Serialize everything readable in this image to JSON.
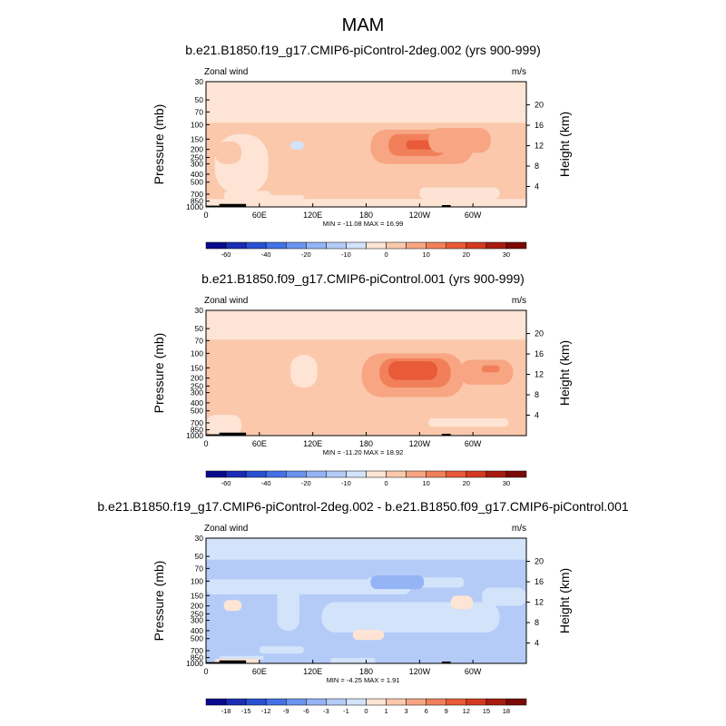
{
  "page_title": "MAM",
  "chart_data": [
    {
      "type": "heatmap",
      "title": "b.e21.B1850.f19_g17.CMIP6-piControl-2deg.002 (yrs 900-999)",
      "variable_label": "Zonal wind",
      "units_label": "m/s",
      "ylabel": "Pressure (mb)",
      "right_ylabel": "Height (km)",
      "pressure_ticks": [
        "30",
        "50",
        "70",
        "100",
        "150",
        "200",
        "250",
        "300",
        "400",
        "500",
        "700",
        "850",
        "1000"
      ],
      "pressure_values": [
        30,
        50,
        70,
        100,
        150,
        200,
        250,
        300,
        400,
        500,
        700,
        850,
        1000
      ],
      "height_ticks": [
        "20",
        "16",
        "12",
        "8",
        "4"
      ],
      "height_values": [
        20,
        16,
        12,
        8,
        4
      ],
      "x_ticks": [
        "0",
        "60E",
        "120E",
        "180",
        "120W",
        "60W"
      ],
      "x_values": [
        0,
        60,
        120,
        180,
        240,
        300
      ],
      "xlim": [
        0,
        360
      ],
      "stats_label": "MIN = -11.08  MAX =  16.99",
      "min": -11.08,
      "max": 16.99,
      "colorbar_levels": [
        -70,
        -60,
        -50,
        -40,
        -30,
        -20,
        -15,
        -10,
        -5,
        0,
        5,
        10,
        15,
        20,
        25,
        30,
        35
      ],
      "colorbar_labels": [
        "-60",
        "-40",
        "-20",
        "-10",
        "0",
        "10",
        "20",
        "30"
      ],
      "colorbar_label_values": [
        -60,
        -40,
        -20,
        -10,
        0,
        10,
        20,
        30
      ],
      "colorbar_colors": [
        "#0a0a8c",
        "#1a2db4",
        "#2a50d2",
        "#4472e6",
        "#6a94f0",
        "#94b4f6",
        "#b4cbf8",
        "#d2e3fa",
        "#fde4d4",
        "#fbc8ac",
        "#f7a582",
        "#f1805a",
        "#e85a38",
        "#d23a20",
        "#a81c10",
        "#7a0a06"
      ],
      "regions": [
        {
          "lon": [
            0,
            360
          ],
          "p": [
            30,
            1000
          ],
          "value": -2
        },
        {
          "lon": [
            0,
            360
          ],
          "p": [
            95,
            800
          ],
          "value": 2
        },
        {
          "lon": [
            10,
            70
          ],
          "p": [
            130,
            700
          ],
          "value": -2
        },
        {
          "lon": [
            10,
            40
          ],
          "p": [
            160,
            300
          ],
          "value": 4
        },
        {
          "lon": [
            70,
            180
          ],
          "p": [
            120,
            700
          ],
          "value": 1
        },
        {
          "lon": [
            95,
            110
          ],
          "p": [
            160,
            200
          ],
          "value": -6
        },
        {
          "lon": [
            170,
            330
          ],
          "p": [
            110,
            450
          ],
          "value": 4
        },
        {
          "lon": [
            185,
            300
          ],
          "p": [
            115,
            300
          ],
          "value": 8
        },
        {
          "lon": [
            205,
            270
          ],
          "p": [
            130,
            240
          ],
          "value": 12
        },
        {
          "lon": [
            225,
            260
          ],
          "p": [
            155,
            200
          ],
          "value": 16
        },
        {
          "lon": [
            250,
            320
          ],
          "p": [
            110,
            220
          ],
          "value": 7
        },
        {
          "lon": [
            20,
            110
          ],
          "p": [
            640,
            850
          ],
          "value": -3
        },
        {
          "lon": [
            70,
            150
          ],
          "p": [
            500,
            720
          ],
          "value": 3
        },
        {
          "lon": [
            240,
            330
          ],
          "p": [
            580,
            800
          ],
          "value": -3
        },
        {
          "lon": [
            10,
            350
          ],
          "p": [
            850,
            1000
          ],
          "value": -2
        }
      ],
      "terrain": [
        {
          "lon": [
            15,
            45
          ],
          "p": [
            920,
            1000
          ]
        },
        {
          "lon": [
            0,
            15
          ],
          "p": [
            965,
            1000
          ]
        },
        {
          "lon": [
            265,
            275
          ],
          "p": [
            950,
            1000
          ]
        }
      ]
    },
    {
      "type": "heatmap",
      "title": "b.e21.B1850.f09_g17.CMIP6-piControl.001 (yrs 900-999)",
      "variable_label": "Zonal wind",
      "units_label": "m/s",
      "ylabel": "Pressure (mb)",
      "right_ylabel": "Height (km)",
      "pressure_ticks": [
        "30",
        "50",
        "70",
        "100",
        "150",
        "200",
        "250",
        "300",
        "400",
        "500",
        "700",
        "850",
        "1000"
      ],
      "pressure_values": [
        30,
        50,
        70,
        100,
        150,
        200,
        250,
        300,
        400,
        500,
        700,
        850,
        1000
      ],
      "height_ticks": [
        "20",
        "16",
        "12",
        "8",
        "4"
      ],
      "height_values": [
        20,
        16,
        12,
        8,
        4
      ],
      "x_ticks": [
        "0",
        "60E",
        "120E",
        "180",
        "120W",
        "60W"
      ],
      "x_values": [
        0,
        60,
        120,
        180,
        240,
        300
      ],
      "xlim": [
        0,
        360
      ],
      "stats_label": "MIN = -11.20  MAX =  18.92",
      "min": -11.2,
      "max": 18.92,
      "colorbar_levels": [
        -70,
        -60,
        -50,
        -40,
        -30,
        -20,
        -15,
        -10,
        -5,
        0,
        5,
        10,
        15,
        20,
        25,
        30,
        35
      ],
      "colorbar_labels": [
        "-60",
        "-40",
        "-20",
        "-10",
        "0",
        "10",
        "20",
        "30"
      ],
      "colorbar_label_values": [
        -60,
        -40,
        -20,
        -10,
        0,
        10,
        20,
        30
      ],
      "colorbar_colors": [
        "#0a0a8c",
        "#1a2db4",
        "#2a50d2",
        "#4472e6",
        "#6a94f0",
        "#94b4f6",
        "#b4cbf8",
        "#d2e3fa",
        "#fde4d4",
        "#fbc8ac",
        "#f7a582",
        "#f1805a",
        "#e85a38",
        "#d23a20",
        "#a81c10",
        "#7a0a06"
      ],
      "regions": [
        {
          "lon": [
            0,
            360
          ],
          "p": [
            30,
            1000
          ],
          "value": 2
        },
        {
          "lon": [
            0,
            360
          ],
          "p": [
            30,
            68
          ],
          "value": -2
        },
        {
          "lon": [
            95,
            125
          ],
          "p": [
            105,
            260
          ],
          "value": -2
        },
        {
          "lon": [
            30,
            70
          ],
          "p": [
            130,
            360
          ],
          "value": 4
        },
        {
          "lon": [
            160,
            320
          ],
          "p": [
            95,
            520
          ],
          "value": 4
        },
        {
          "lon": [
            175,
            290
          ],
          "p": [
            100,
            340
          ],
          "value": 8
        },
        {
          "lon": [
            195,
            275
          ],
          "p": [
            115,
            260
          ],
          "value": 12
        },
        {
          "lon": [
            205,
            260
          ],
          "p": [
            125,
            210
          ],
          "value": 16
        },
        {
          "lon": [
            285,
            345
          ],
          "p": [
            120,
            240
          ],
          "value": 7
        },
        {
          "lon": [
            310,
            330
          ],
          "p": [
            140,
            170
          ],
          "value": 12
        },
        {
          "lon": [
            0,
            40
          ],
          "p": [
            560,
            1000
          ],
          "value": -2
        },
        {
          "lon": [
            60,
            150
          ],
          "p": [
            680,
            900
          ],
          "value": 4
        },
        {
          "lon": [
            250,
            340
          ],
          "p": [
            620,
            780
          ],
          "value": -2
        }
      ],
      "terrain": [
        {
          "lon": [
            15,
            45
          ],
          "p": [
            920,
            1000
          ]
        },
        {
          "lon": [
            0,
            15
          ],
          "p": [
            965,
            1000
          ]
        },
        {
          "lon": [
            265,
            275
          ],
          "p": [
            950,
            1000
          ]
        }
      ]
    },
    {
      "type": "heatmap",
      "title": "b.e21.B1850.f19_g17.CMIP6-piControl-2deg.002 - b.e21.B1850.f09_g17.CMIP6-piControl.001",
      "variable_label": "Zonal wind",
      "units_label": "m/s",
      "ylabel": "Pressure (mb)",
      "right_ylabel": "Height (km)",
      "pressure_ticks": [
        "30",
        "50",
        "70",
        "100",
        "150",
        "200",
        "250",
        "300",
        "400",
        "500",
        "700",
        "850",
        "1000"
      ],
      "pressure_values": [
        30,
        50,
        70,
        100,
        150,
        200,
        250,
        300,
        400,
        500,
        700,
        850,
        1000
      ],
      "height_ticks": [
        "20",
        "16",
        "12",
        "8",
        "4"
      ],
      "height_values": [
        20,
        16,
        12,
        8,
        4
      ],
      "x_ticks": [
        "0",
        "60E",
        "120E",
        "180",
        "120W",
        "60W"
      ],
      "x_values": [
        0,
        60,
        120,
        180,
        240,
        300
      ],
      "xlim": [
        0,
        360
      ],
      "stats_label": "MIN =  -4.25  MAX =   1.91",
      "min": -4.25,
      "max": 1.91,
      "colorbar_levels": [
        -21,
        -18,
        -15,
        -12,
        -9,
        -6,
        -3,
        -1,
        0,
        1,
        3,
        6,
        9,
        12,
        15,
        18,
        21
      ],
      "colorbar_labels": [
        "-18",
        "-15",
        "-12",
        "-9",
        "-6",
        "-3",
        "-1",
        "0",
        "1",
        "3",
        "6",
        "9",
        "12",
        "15",
        "18"
      ],
      "colorbar_label_values": [
        -18,
        -15,
        -12,
        -9,
        -6,
        -3,
        -1,
        0,
        1,
        3,
        6,
        9,
        12,
        15,
        18
      ],
      "colorbar_colors": [
        "#0a0a8c",
        "#1a2db4",
        "#2a50d2",
        "#4472e6",
        "#6a94f0",
        "#94b4f6",
        "#b4cbf8",
        "#d2e3fa",
        "#fde4d4",
        "#fbc8ac",
        "#f7a582",
        "#f1805a",
        "#e85a38",
        "#d23a20",
        "#a81c10",
        "#7a0a06"
      ],
      "regions": [
        {
          "lon": [
            0,
            360
          ],
          "p": [
            30,
            1000
          ],
          "value": -2
        },
        {
          "lon": [
            0,
            360
          ],
          "p": [
            30,
            55
          ],
          "value": -0.5
        },
        {
          "lon": [
            0,
            360
          ],
          "p": [
            55,
            95
          ],
          "value": -2
        },
        {
          "lon": [
            0,
            230
          ],
          "p": [
            95,
            145
          ],
          "value": -0.5
        },
        {
          "lon": [
            80,
            105
          ],
          "p": [
            105,
            400
          ],
          "value": -0.5
        },
        {
          "lon": [
            180,
            290
          ],
          "p": [
            90,
            120
          ],
          "value": -0.5
        },
        {
          "lon": [
            130,
            330
          ],
          "p": [
            180,
            420
          ],
          "value": -0.5
        },
        {
          "lon": [
            185,
            245
          ],
          "p": [
            85,
            125
          ],
          "value": -3.5
        },
        {
          "lon": [
            20,
            40
          ],
          "p": [
            170,
            230
          ],
          "value": 0.5
        },
        {
          "lon": [
            275,
            300
          ],
          "p": [
            150,
            220
          ],
          "value": 0.5
        },
        {
          "lon": [
            310,
            360
          ],
          "p": [
            120,
            200
          ],
          "value": -0.5
        },
        {
          "lon": [
            165,
            200
          ],
          "p": [
            390,
            520
          ],
          "value": 0.5
        },
        {
          "lon": [
            60,
            110
          ],
          "p": [
            620,
            760
          ],
          "value": -0.5
        },
        {
          "lon": [
            15,
            65
          ],
          "p": [
            810,
            900
          ],
          "value": -0.5
        },
        {
          "lon": [
            10,
            60
          ],
          "p": [
            880,
            1000
          ],
          "value": 0.5
        },
        {
          "lon": [
            140,
            190
          ],
          "p": [
            860,
            1000
          ],
          "value": -0.5
        }
      ],
      "terrain": [
        {
          "lon": [
            15,
            45
          ],
          "p": [
            920,
            1000
          ]
        },
        {
          "lon": [
            0,
            15
          ],
          "p": [
            965,
            1000
          ]
        },
        {
          "lon": [
            265,
            275
          ],
          "p": [
            950,
            1000
          ]
        }
      ]
    }
  ]
}
